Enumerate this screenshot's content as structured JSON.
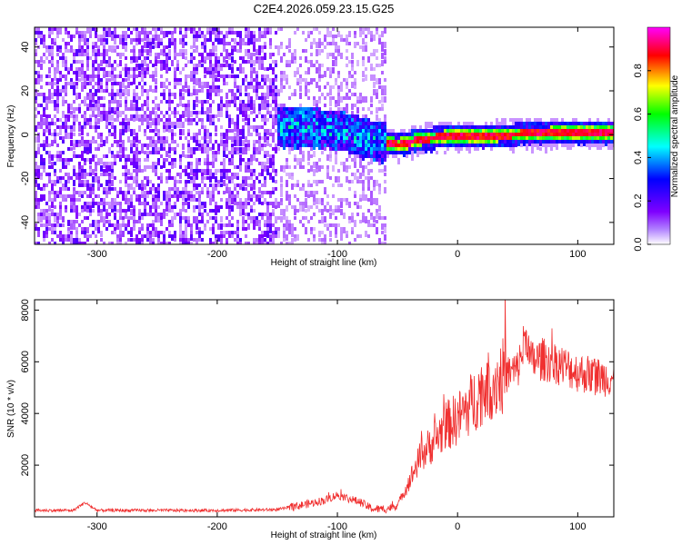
{
  "figure_title": "C2E4.2026.059.23.15.G25",
  "chart_data": [
    {
      "type": "heatmap",
      "title": "C2E4.2026.059.23.15.G25",
      "xlabel": "Height of straight line (km)",
      "ylabel": "Frequency (Hz)",
      "xlim": [
        -352,
        130
      ],
      "ylim": [
        -50,
        49
      ],
      "xticks": [
        -300,
        -200,
        -100,
        0,
        100
      ],
      "yticks": [
        -40,
        -20,
        0,
        20,
        40
      ],
      "colorbar": {
        "label": "Normalized spectral amplitude",
        "range": [
          0.0,
          1.0
        ],
        "ticks": [
          "0.0",
          "0.2",
          "0.4",
          "0.6",
          "0.8"
        ],
        "colormap": [
          "#ffffff",
          "#7f00ff",
          "#0000ff",
          "#00ffff",
          "#00ff00",
          "#ffff00",
          "#ff0000",
          "#ff00ff"
        ]
      },
      "regions": [
        {
          "x_range": [
            -352,
            -150
          ],
          "description": "broadband noise",
          "amplitude": 0.1
        },
        {
          "x_range": [
            -150,
            -60
          ],
          "description": "emerging signal near 0 Hz",
          "amplitude": 0.45
        },
        {
          "x_range": [
            -60,
            130
          ],
          "description": "strong narrow line near 0 Hz",
          "amplitude": 0.95
        }
      ],
      "signal_line": {
        "x": [
          -150,
          -100,
          -70,
          -50,
          -30,
          0,
          50,
          100,
          130
        ],
        "freq": [
          5,
          3,
          -2,
          -4,
          -1,
          0,
          1,
          1.5,
          1.5
        ]
      }
    },
    {
      "type": "line",
      "xlabel": "Height of straight line (km)",
      "ylabel": "SNR (10 * v/v)",
      "xlim": [
        -352,
        130
      ],
      "ylim": [
        0,
        8400
      ],
      "xticks": [
        -300,
        -200,
        -100,
        0,
        100
      ],
      "yticks": [
        2000,
        4000,
        6000,
        8000
      ],
      "series": [
        {
          "name": "SNR",
          "color": "#f03030",
          "x": [
            -352,
            -320,
            -310,
            -300,
            -250,
            -200,
            -150,
            -130,
            -110,
            -100,
            -90,
            -80,
            -75,
            -70,
            -60,
            -50,
            -40,
            -30,
            -20,
            -10,
            0,
            10,
            20,
            30,
            40,
            50,
            58,
            60,
            70,
            80,
            90,
            100,
            110,
            120,
            130
          ],
          "y": [
            250,
            250,
            550,
            250,
            250,
            250,
            280,
            450,
            650,
            850,
            700,
            550,
            400,
            300,
            300,
            450,
            1400,
            2400,
            2900,
            3500,
            3800,
            4300,
            4900,
            5200,
            5500,
            5700,
            7200,
            6000,
            6100,
            6000,
            5800,
            5600,
            5500,
            5400,
            5400
          ]
        }
      ]
    }
  ]
}
